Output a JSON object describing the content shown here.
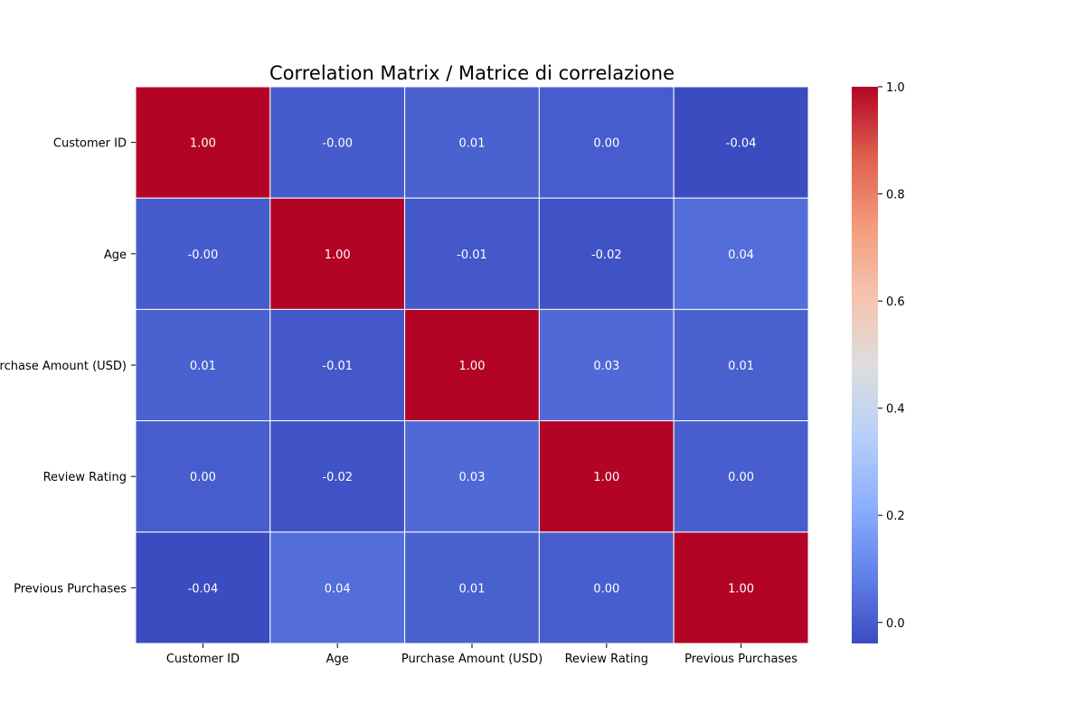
{
  "chart_data": {
    "type": "heatmap",
    "title": "Correlation Matrix / Matrice di correlazione",
    "x_categories": [
      "Customer ID",
      "Age",
      "Purchase Amount (USD)",
      "Review Rating",
      "Previous Purchases"
    ],
    "y_categories": [
      "Customer ID",
      "Age",
      "Purchase Amount (USD)",
      "Review Rating",
      "Previous Purchases"
    ],
    "values": [
      [
        1.0,
        -0.0021,
        0.011,
        0.0013,
        -0.0392
      ],
      [
        -0.0021,
        1.0,
        -0.0104,
        -0.0219,
        0.0406
      ],
      [
        0.011,
        -0.0104,
        1.0,
        0.0309,
        0.0083
      ],
      [
        0.0013,
        -0.0219,
        0.0309,
        1.0,
        0.0043
      ],
      [
        -0.0392,
        0.0406,
        0.0083,
        0.0043,
        1.0
      ]
    ],
    "cell_labels": [
      [
        "1.00",
        "-0.00",
        "0.01",
        "0.00",
        "-0.04"
      ],
      [
        "-0.00",
        "1.00",
        "-0.01",
        "-0.02",
        "0.04"
      ],
      [
        "0.01",
        "-0.01",
        "1.00",
        "0.03",
        "0.01"
      ],
      [
        "0.00",
        "-0.02",
        "0.03",
        "1.00",
        "0.00"
      ],
      [
        "-0.04",
        "0.04",
        "0.01",
        "0.00",
        "1.00"
      ]
    ],
    "colormap": "coolwarm",
    "vmin": -0.0392,
    "vmax": 1.0,
    "colorbar_ticks": [
      0.0,
      0.2,
      0.4,
      0.6,
      0.8,
      1.0
    ],
    "colorbar_tick_labels": [
      "0.0",
      "0.2",
      "0.4",
      "0.6",
      "0.8",
      "1.0"
    ],
    "cell_border_color": "#ffffff",
    "annotation_color": "#ffffff"
  }
}
